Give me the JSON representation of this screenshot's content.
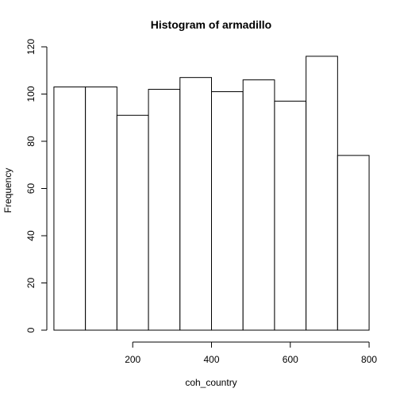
{
  "chart_data": {
    "type": "bar",
    "title": "Histogram of armadillo",
    "xlabel": "coh_country",
    "ylabel": "Frequency",
    "bin_edges": [
      0,
      80,
      160,
      240,
      320,
      400,
      480,
      560,
      640,
      720,
      800
    ],
    "values": [
      103,
      103,
      91,
      102,
      107,
      101,
      106,
      97,
      116,
      74
    ],
    "xlim": [
      -18,
      818
    ],
    "ylim": [
      0,
      120
    ],
    "xticks": [
      200,
      400,
      600,
      800
    ],
    "yticks": [
      0,
      20,
      40,
      60,
      80,
      100,
      120
    ],
    "grid": false,
    "bar_fill": "#ffffff",
    "bar_stroke": "#000000"
  }
}
